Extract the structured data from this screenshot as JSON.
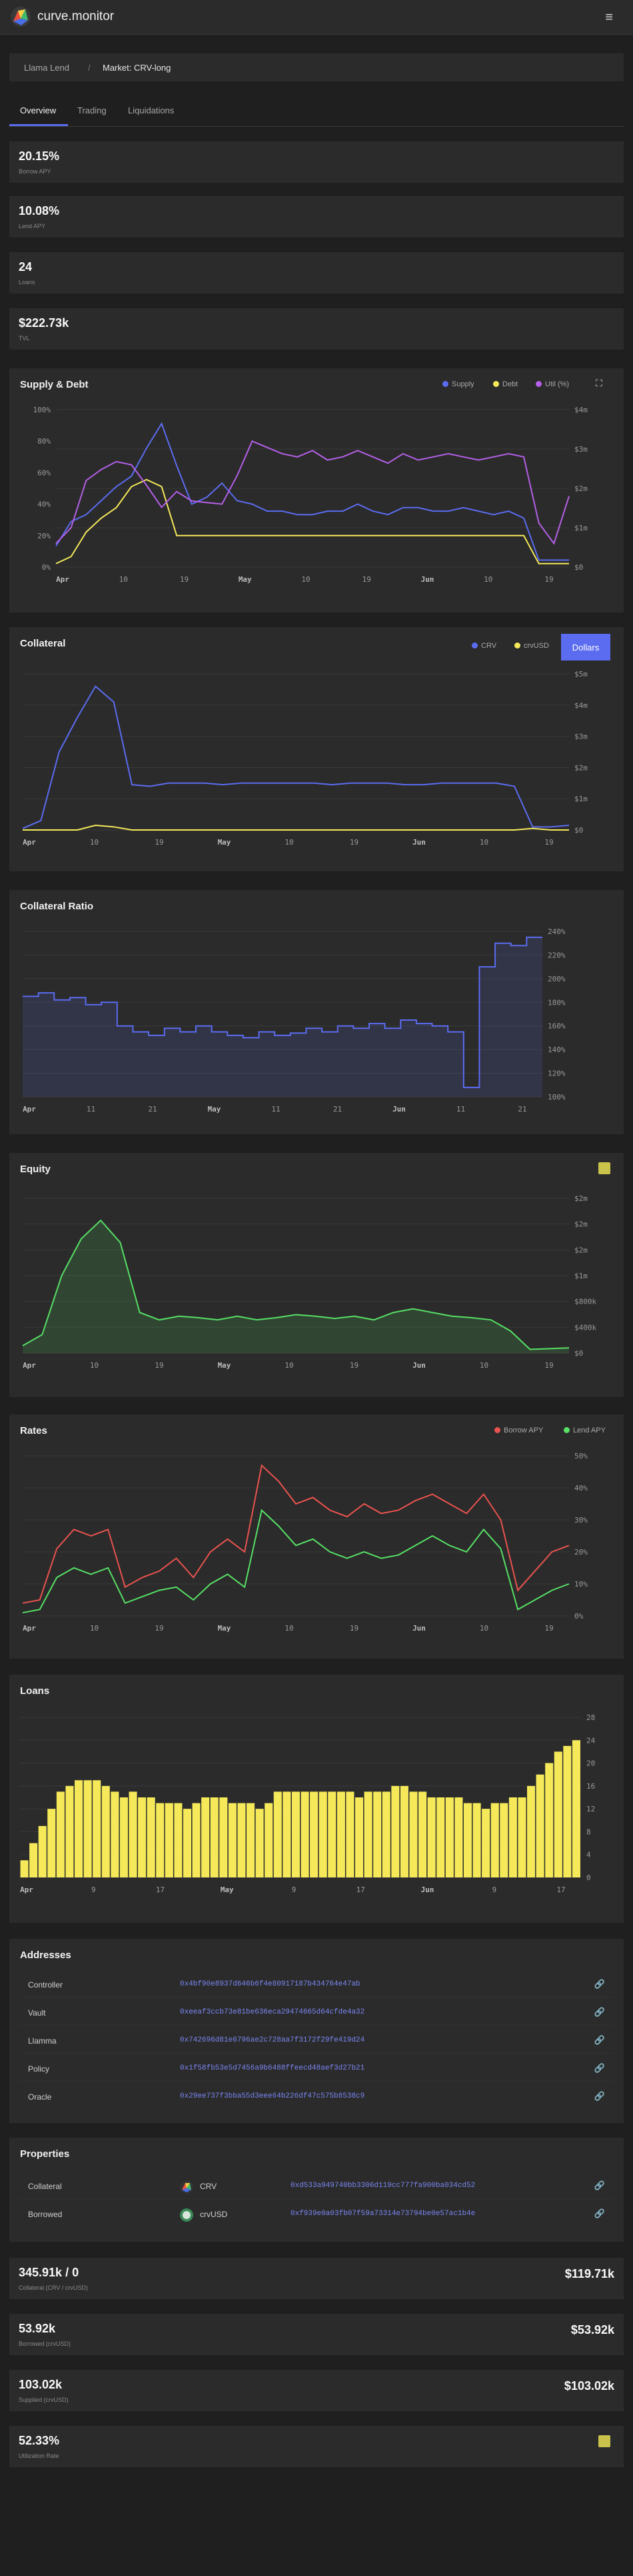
{
  "header": {
    "brand": "curve.monitor",
    "menu_icon": "hamburger-icon"
  },
  "breadcrumb": {
    "root": "Llama Lend",
    "separator": "/",
    "current": "Market: CRV-long"
  },
  "tabs": [
    {
      "label": "Overview"
    },
    {
      "label": "Trading"
    },
    {
      "label": "Liquidations"
    }
  ],
  "kpis": [
    {
      "value": "20.15%",
      "label": "Borrow APY"
    },
    {
      "value": "10.08%",
      "label": "Lend APY"
    },
    {
      "value": "24",
      "label": "Loans"
    },
    {
      "value": "$222.73k",
      "label": "TVL"
    }
  ],
  "charts": {
    "supply_debt": {
      "title": "Supply & Debt",
      "legend": [
        {
          "name": "Supply",
          "color": "#5b6cf0"
        },
        {
          "name": "Debt",
          "color": "#f5e95a"
        },
        {
          "name": "Util (%)",
          "color": "#b560e8"
        }
      ],
      "left_ticks": [
        "100%",
        "80%",
        "60%",
        "40%",
        "20%",
        "0%"
      ],
      "right_ticks": [
        "$4m",
        "$3m",
        "$2m",
        "$1m",
        "$0"
      ],
      "x_ticks": [
        "Apr",
        "10",
        "19",
        "May",
        "10",
        "19",
        "Jun",
        "10",
        "19"
      ]
    },
    "collateral": {
      "title": "Collateral",
      "legend": [
        {
          "name": "CRV",
          "color": "#5b6cf0"
        },
        {
          "name": "crvUSD",
          "color": "#f5e95a"
        }
      ],
      "toggle_label": "Dollars",
      "right_ticks": [
        "$5m",
        "$4m",
        "$3m",
        "$2m",
        "$1m",
        "$0"
      ],
      "x_ticks": [
        "Apr",
        "10",
        "19",
        "May",
        "10",
        "19",
        "Jun",
        "10",
        "19"
      ]
    },
    "collateral_ratio": {
      "title": "Collateral Ratio",
      "right_ticks": [
        "240%",
        "220%",
        "200%",
        "180%",
        "160%",
        "140%",
        "120%",
        "100%"
      ],
      "x_ticks": [
        "Apr",
        "11",
        "21",
        "May",
        "11",
        "21",
        "Jun",
        "11",
        "21"
      ]
    },
    "equity": {
      "title": "Equity",
      "right_ticks": [
        "$2m",
        "$2m",
        "$2m",
        "$1m",
        "$800k",
        "$400k",
        "$0"
      ],
      "x_ticks": [
        "Apr",
        "10",
        "19",
        "May",
        "10",
        "19",
        "Jun",
        "10",
        "19"
      ]
    },
    "rates": {
      "title": "Rates",
      "legend": [
        {
          "name": "Borrow APY",
          "color": "#e9534f"
        },
        {
          "name": "Lend APY",
          "color": "#56e065"
        }
      ],
      "right_ticks": [
        "50%",
        "40%",
        "30%",
        "20%",
        "10%",
        "0%"
      ],
      "x_ticks": [
        "Apr",
        "10",
        "19",
        "May",
        "10",
        "19",
        "Jun",
        "10",
        "19"
      ]
    },
    "loans": {
      "title": "Loans",
      "right_ticks": [
        "28",
        "24",
        "20",
        "16",
        "12",
        "8",
        "4",
        "0"
      ],
      "x_ticks": [
        "Apr",
        "9",
        "17",
        "May",
        "9",
        "17",
        "Jun",
        "9",
        "17"
      ],
      "bar_color": "#f5e95a"
    }
  },
  "addresses": {
    "title": "Addresses",
    "rows": [
      {
        "label": "Controller",
        "address": "0x4bf90e8937d646b6f4e80917187b434764e47ab"
      },
      {
        "label": "Vault",
        "address": "0xeeaf3ccb73e81be636eca29474665d64cfde4a32"
      },
      {
        "label": "Llamma",
        "address": "0x742696d81e6796ae2c728aa7f3172f29fe419d24"
      },
      {
        "label": "Policy",
        "address": "0x1f58fb53e5d7456a9b6488ffeecd48aef3d27b21"
      },
      {
        "label": "Oracle",
        "address": "0x29ee737f3bba55d3eee64b226df47c575b8538c9"
      }
    ]
  },
  "properties": {
    "title": "Properties",
    "rows": [
      {
        "label": "Collateral",
        "token": "CRV",
        "address": "0xd533a949740bb3306d119cc777fa900ba034cd52"
      },
      {
        "label": "Borrowed",
        "token": "crvUSD",
        "address": "0xf939e0a03fb07f59a73314e73794be0e57ac1b4e"
      }
    ]
  },
  "stats": [
    {
      "value": "345.91k / 0",
      "label": "Collateral (CRV / crvUSD)",
      "right": "$119.71k"
    },
    {
      "value": "53.92k",
      "label": "Borrowed (crvUSD)",
      "right": "$53.92k"
    },
    {
      "value": "103.02k",
      "label": "Supplied (crvUSD)",
      "right": "$103.02k"
    },
    {
      "value": "52.33%",
      "label": "Utilization Rate",
      "right": ""
    }
  ],
  "chart_data": [
    {
      "type": "line",
      "title": "Supply & Debt",
      "series": [
        {
          "name": "Supply",
          "values": [
            0.6,
            1.3,
            1.5,
            1.9,
            2.3,
            2.6,
            3.4,
            4.1,
            2.9,
            1.8,
            2.0,
            2.4,
            1.9,
            1.8,
            1.6,
            1.6,
            1.5,
            1.5,
            1.6,
            1.6,
            1.8,
            1.6,
            1.5,
            1.7,
            1.7,
            1.6,
            1.6,
            1.7,
            1.6,
            1.5,
            1.6,
            1.4,
            0.2,
            0.2,
            0.2
          ]
        },
        {
          "name": "Debt",
          "values": [
            0.1,
            0.3,
            1.0,
            1.4,
            1.7,
            2.3,
            2.5,
            2.3,
            0.9,
            0.9,
            0.9,
            0.9,
            0.9,
            0.9,
            0.9,
            0.9,
            0.9,
            0.9,
            0.9,
            0.9,
            0.9,
            0.9,
            0.9,
            0.9,
            0.9,
            0.9,
            0.9,
            0.9,
            0.9,
            0.9,
            0.9,
            0.9,
            0.1,
            0.1,
            0.1
          ]
        },
        {
          "name": "Util (%)",
          "values": [
            15,
            25,
            55,
            62,
            67,
            65,
            52,
            38,
            48,
            42,
            41,
            40,
            58,
            80,
            76,
            72,
            70,
            74,
            68,
            70,
            74,
            70,
            66,
            72,
            68,
            70,
            72,
            70,
            68,
            70,
            72,
            70,
            28,
            15,
            45
          ]
        }
      ]
    },
    {
      "type": "line",
      "title": "Collateral",
      "series": [
        {
          "name": "CRV",
          "values": [
            0.05,
            0.3,
            2.5,
            3.6,
            4.6,
            4.1,
            1.45,
            1.4,
            1.5,
            1.5,
            1.5,
            1.45,
            1.5,
            1.5,
            1.5,
            1.5,
            1.5,
            1.45,
            1.5,
            1.5,
            1.5,
            1.45,
            1.45,
            1.5,
            1.5,
            1.5,
            1.5,
            1.4,
            0.1,
            0.1,
            0.15
          ]
        },
        {
          "name": "crvUSD",
          "values": [
            0,
            0,
            0,
            0,
            0.15,
            0.1,
            0,
            0,
            0,
            0,
            0,
            0,
            0,
            0,
            0,
            0,
            0,
            0,
            0,
            0,
            0,
            0,
            0,
            0,
            0,
            0,
            0,
            0,
            0.05,
            0,
            0
          ]
        }
      ]
    },
    {
      "type": "line",
      "title": "Collateral Ratio",
      "series": [
        {
          "name": "Collateral Ratio",
          "values": [
            185,
            188,
            182,
            184,
            178,
            180,
            160,
            155,
            152,
            158,
            155,
            160,
            155,
            152,
            150,
            155,
            152,
            154,
            158,
            155,
            160,
            158,
            162,
            158,
            165,
            162,
            160,
            155,
            108,
            210,
            230,
            228,
            235
          ]
        }
      ]
    },
    {
      "type": "area",
      "title": "Equity",
      "series": [
        {
          "name": "Equity",
          "values": [
            0.1,
            0.25,
            1.05,
            1.55,
            1.8,
            1.5,
            0.55,
            0.45,
            0.5,
            0.48,
            0.45,
            0.5,
            0.45,
            0.48,
            0.52,
            0.5,
            0.47,
            0.5,
            0.45,
            0.55,
            0.6,
            0.55,
            0.5,
            0.48,
            0.45,
            0.3,
            0.05,
            0.06,
            0.07
          ]
        }
      ]
    },
    {
      "type": "line",
      "title": "Rates",
      "series": [
        {
          "name": "Borrow APY",
          "values": [
            4,
            5,
            21,
            27,
            25,
            27,
            9,
            12,
            14,
            18,
            12,
            20,
            24,
            20,
            47,
            42,
            35,
            37,
            33,
            31,
            35,
            32,
            33,
            36,
            38,
            35,
            32,
            38,
            30,
            8,
            14,
            20,
            22
          ]
        },
        {
          "name": "Lend APY",
          "values": [
            1,
            2,
            12,
            15,
            13,
            15,
            4,
            6,
            8,
            9,
            5,
            10,
            13,
            9,
            33,
            28,
            22,
            24,
            20,
            18,
            20,
            18,
            19,
            22,
            25,
            22,
            20,
            27,
            21,
            2,
            5,
            8,
            10
          ]
        }
      ]
    },
    {
      "type": "bar",
      "title": "Loans",
      "values": [
        3,
        6,
        9,
        12,
        15,
        16,
        17,
        17,
        17,
        16,
        15,
        14,
        15,
        14,
        14,
        13,
        13,
        13,
        12,
        13,
        14,
        14,
        14,
        13,
        13,
        13,
        12,
        13,
        15,
        15,
        15,
        15,
        15,
        15,
        15,
        15,
        15,
        14,
        15,
        15,
        15,
        16,
        16,
        15,
        15,
        14,
        14,
        14,
        14,
        13,
        13,
        12,
        13,
        13,
        14,
        14,
        16,
        18,
        20,
        22,
        23,
        24
      ]
    }
  ]
}
